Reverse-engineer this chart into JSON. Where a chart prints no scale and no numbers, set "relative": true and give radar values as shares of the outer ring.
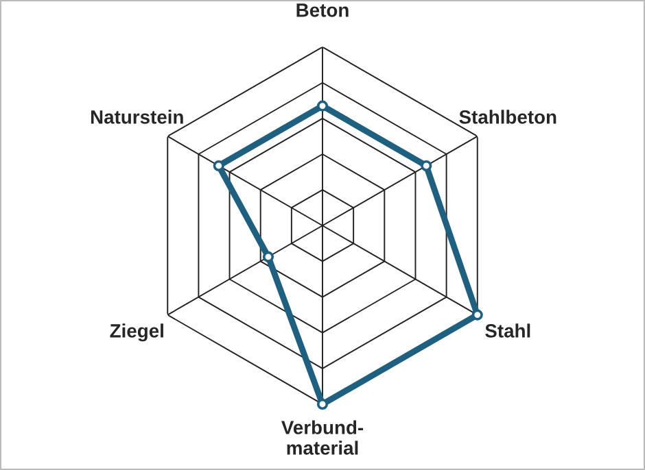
{
  "chart_data": {
    "type": "radar",
    "relative": true,
    "grid": true,
    "marker": "circle",
    "categories": [
      "Beton",
      "Stahlbeton",
      "Stahl",
      "Verbund-\nmaterial",
      "Ziegel",
      "Naturstein"
    ],
    "series": [
      {
        "color": "#1f5f80",
        "values": [
          0.67,
          0.67,
          1.0,
          1.0,
          0.35,
          0.67
        ]
      }
    ]
  }
}
